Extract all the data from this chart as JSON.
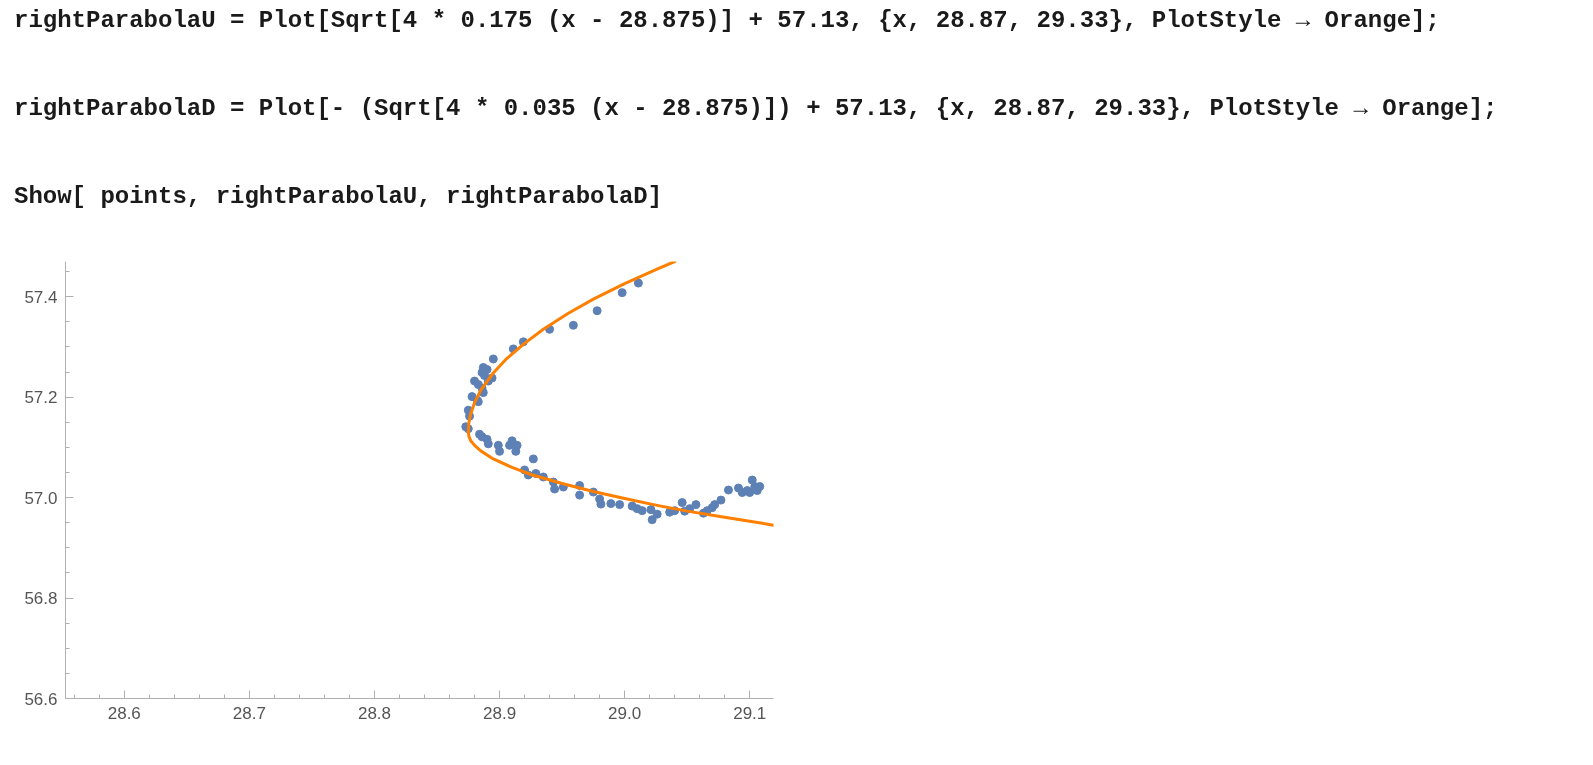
{
  "chart_data": {
    "type": "scatter",
    "annotations": [
      "rightParabolaU = Plot[Sqrt[4 * 0.175 (x - 28.875)] + 57.13, {x, 28.87, 29.33}, PlotStyle → Orange];",
      "rightParabolaD = Plot[- (Sqrt[4 * 0.035 (x - 28.875)]) + 57.13, {x, 28.87, 29.33}, PlotStyle → Orange];",
      "Show[ points, rightParabolaU, rightParabolaD]"
    ],
    "xlim": [
      28.553,
      29.119
    ],
    "ylim": [
      56.6,
      57.47
    ],
    "xticks": [
      28.6,
      28.7,
      28.8,
      28.9,
      {
        "value": 29.0,
        "label": "29.0"
      },
      29.1
    ],
    "yticks": [
      56.6,
      56.8,
      {
        "value": 57.0,
        "label": "57.0"
      },
      57.2,
      57.4
    ],
    "series": [
      {
        "color": "#5e81b5",
        "marker": "circle",
        "x": [
          29.011,
          28.998,
          28.978,
          28.959,
          28.94,
          28.919,
          28.911,
          28.895,
          28.887,
          28.89,
          28.886,
          28.888,
          28.894,
          28.891,
          28.88,
          28.883,
          28.886,
          28.887,
          28.878,
          28.882,
          28.883,
          28.875,
          28.876,
          28.873,
          28.875,
          28.884,
          28.886,
          28.89,
          28.891,
          28.899,
          28.9,
          28.908,
          28.91,
          28.914,
          28.913,
          28.927,
          28.92,
          28.923,
          28.929,
          28.935,
          28.943,
          28.944,
          28.951,
          28.964,
          28.964,
          28.975,
          28.98,
          28.981,
          28.989,
          28.996,
          29.006,
          29.01,
          29.014,
          29.021,
          29.026,
          29.022,
          29.036,
          29.04,
          29.046,
          29.048,
          29.052,
          29.057,
          29.063,
          29.066,
          29.07,
          29.072,
          29.077,
          29.083,
          29.091,
          29.094,
          29.098,
          29.102,
          29.104,
          29.106,
          29.108,
          29.1
        ],
        "values": [
          57.427,
          57.408,
          57.372,
          57.343,
          57.335,
          57.31,
          57.296,
          57.276,
          57.259,
          57.255,
          57.249,
          57.243,
          57.238,
          57.232,
          57.232,
          57.225,
          57.218,
          57.209,
          57.201,
          57.194,
          57.191,
          57.174,
          57.162,
          57.141,
          57.137,
          57.126,
          57.121,
          57.116,
          57.107,
          57.104,
          57.092,
          57.104,
          57.113,
          57.104,
          57.092,
          57.077,
          57.055,
          57.045,
          57.048,
          57.041,
          57.031,
          57.017,
          57.021,
          57.024,
          57.005,
          57.011,
          56.997,
          56.987,
          56.988,
          56.986,
          56.983,
          56.978,
          56.974,
          56.976,
          56.967,
          56.956,
          56.971,
          56.974,
          56.99,
          56.973,
          56.978,
          56.986,
          56.969,
          56.974,
          56.98,
          56.986,
          56.995,
          57.015,
          57.019,
          57.01,
          57.014,
          57.035,
          57.022,
          57.014,
          57.022,
          57.01
        ]
      },
      {
        "type": "line",
        "color": "#ff8000",
        "x": [
          29.04,
          29.025,
          29.0,
          28.975,
          28.955,
          28.935,
          28.92,
          28.905,
          28.895,
          28.885,
          28.88,
          28.877,
          28.8755,
          28.875,
          28.8755,
          28.877,
          28.88,
          28.885,
          28.895,
          28.91,
          28.925,
          28.95,
          28.975,
          29.0,
          29.025,
          29.05,
          29.075,
          29.1,
          29.119
        ],
        "values": [
          57.47,
          57.454,
          57.426,
          57.395,
          57.367,
          57.335,
          57.307,
          57.275,
          57.248,
          57.214,
          57.189,
          57.167,
          57.149,
          57.13,
          57.122,
          57.113,
          57.104,
          57.093,
          57.077,
          57.06,
          57.046,
          57.028,
          57.012,
          56.998,
          56.985,
          56.973,
          56.963,
          56.953,
          56.945
        ]
      }
    ]
  }
}
